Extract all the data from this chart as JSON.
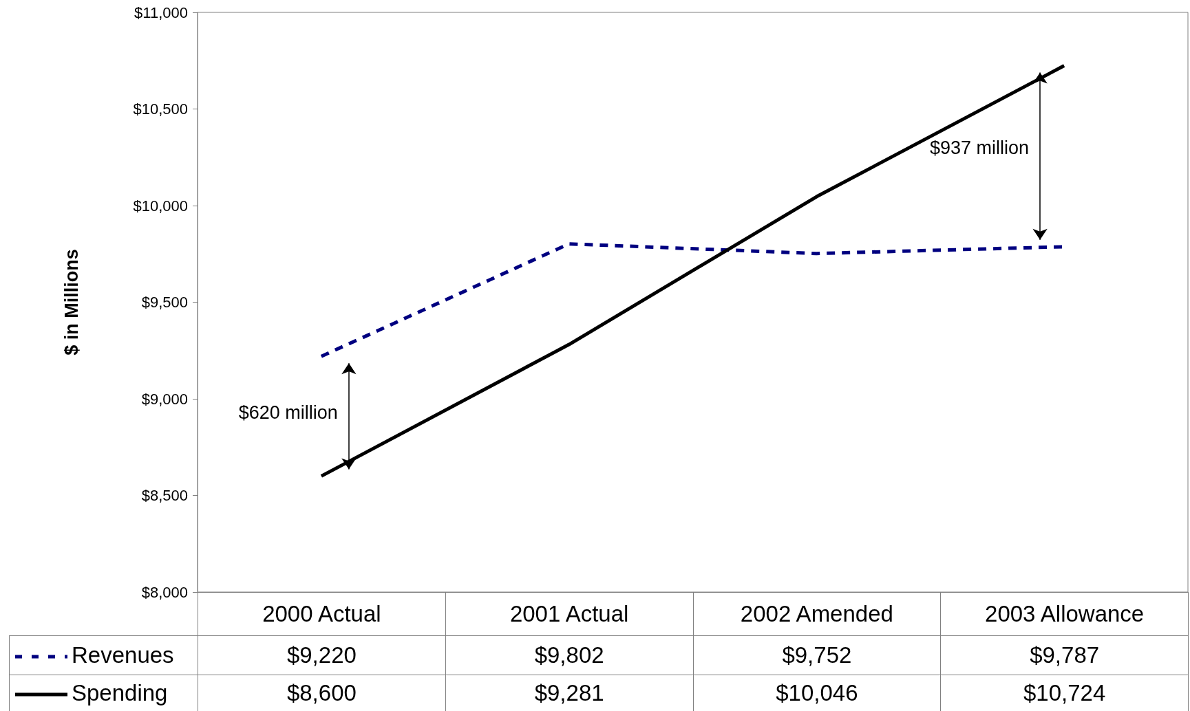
{
  "chart_data": {
    "type": "line",
    "ylabel": "$ in Millions",
    "categories": [
      "2000 Actual",
      "2001 Actual",
      "2002 Amended",
      "2003 Allowance"
    ],
    "series": [
      {
        "name": "Revenues",
        "color": "#000080",
        "line_style": "dashed",
        "values": [
          9220,
          9802,
          9752,
          9787
        ],
        "value_labels": [
          "$9,220",
          "$9,802",
          "$9,752",
          "$9,787"
        ]
      },
      {
        "name": "Spending",
        "color": "#000000",
        "line_style": "solid",
        "values": [
          8600,
          9281,
          10046,
          10724
        ],
        "value_labels": [
          "$8,600",
          "$9,281",
          "$10,046",
          "$10,724"
        ]
      }
    ],
    "ylim": [
      8000,
      11000
    ],
    "yticks": [
      {
        "value": 8000,
        "label": "$8,000"
      },
      {
        "value": 8500,
        "label": "$8,500"
      },
      {
        "value": 9000,
        "label": "$9,000"
      },
      {
        "value": 9500,
        "label": "$9,500"
      },
      {
        "value": 10000,
        "label": "$10,000"
      },
      {
        "value": 10500,
        "label": "$10,500"
      },
      {
        "value": 11000,
        "label": "$11,000"
      }
    ],
    "annotations": [
      "$620 million",
      "$937 million"
    ],
    "grid": false,
    "legend": "bottom left",
    "marker": "none"
  }
}
